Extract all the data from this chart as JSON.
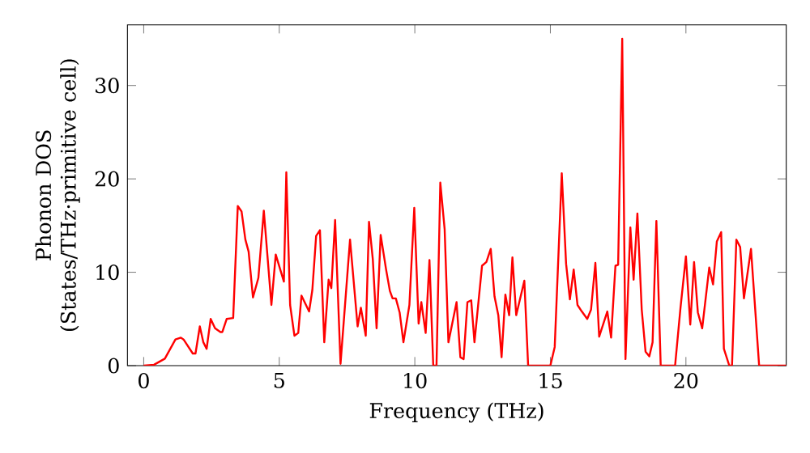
{
  "chart_data": {
    "type": "line",
    "xlabel": "Frequency (THz)",
    "ylabel": "Phonon DOS (States/THz·primitive cell)",
    "xlim": [
      -0.6,
      23.7
    ],
    "ylim": [
      0,
      36.5
    ],
    "xticks": [
      0,
      5,
      10,
      15,
      20
    ],
    "yticks": [
      0,
      10,
      20,
      30
    ],
    "grid": false,
    "series": [
      {
        "color": "#ff0000",
        "x": [
          0,
          0.38,
          0.78,
          1.17,
          1.37,
          1.47,
          1.81,
          1.91,
          2.07,
          2.2,
          2.32,
          2.47,
          2.63,
          2.83,
          2.9,
          3.06,
          3.3,
          3.47,
          3.61,
          3.75,
          3.87,
          4.03,
          4.23,
          4.43,
          4.71,
          4.87,
          5.17,
          5.26,
          5.4,
          5.56,
          5.7,
          5.82,
          6.1,
          6.22,
          6.36,
          6.5,
          6.66,
          6.82,
          6.92,
          7.06,
          7.26,
          7.61,
          7.89,
          8.01,
          8.19,
          8.31,
          8.45,
          8.59,
          8.74,
          8.94,
          9.08,
          9.18,
          9.3,
          9.44,
          9.58,
          9.8,
          9.98,
          10.14,
          10.24,
          10.4,
          10.54,
          10.68,
          10.8,
          10.94,
          11.1,
          11.24,
          11.54,
          11.68,
          11.8,
          11.94,
          12.08,
          12.2,
          12.48,
          12.64,
          12.8,
          12.94,
          13.08,
          13.2,
          13.34,
          13.48,
          13.6,
          13.74,
          14.04,
          14.18,
          15.0,
          15.16,
          15.42,
          15.58,
          15.72,
          15.86,
          16.0,
          16.16,
          16.36,
          16.5,
          16.66,
          16.8,
          17.1,
          17.24,
          17.4,
          17.5,
          17.65,
          17.77,
          17.95,
          18.07,
          18.21,
          18.37,
          18.51,
          18.65,
          18.77,
          18.91,
          19.07,
          19.6,
          19.8,
          20.0,
          20.16,
          20.3,
          20.44,
          20.6,
          20.86,
          21.0,
          21.14,
          21.3,
          21.4,
          21.6,
          21.7,
          21.86,
          22.0,
          22.14,
          22.4,
          22.7,
          23.7
        ],
        "values": [
          0,
          0.1,
          0.75,
          2.8,
          3.0,
          2.8,
          1.3,
          1.3,
          4.2,
          2.5,
          1.8,
          5.0,
          4.0,
          3.6,
          3.6,
          5.0,
          5.1,
          17.1,
          16.5,
          13.5,
          12.2,
          7.3,
          9.4,
          16.6,
          6.5,
          11.9,
          9.0,
          20.7,
          6.5,
          3.2,
          3.5,
          7.5,
          5.8,
          8.1,
          13.9,
          14.5,
          2.5,
          9.2,
          8.3,
          15.6,
          0.2,
          13.5,
          4.2,
          6.2,
          3.2,
          15.4,
          11.4,
          4.0,
          14.0,
          10.3,
          8.0,
          7.2,
          7.2,
          5.7,
          2.5,
          6.5,
          16.9,
          4.5,
          6.8,
          3.5,
          11.3,
          0,
          0,
          19.6,
          14.6,
          2.5,
          6.8,
          0.9,
          0.7,
          6.8,
          7.0,
          2.5,
          10.7,
          11.1,
          12.5,
          7.4,
          5.4,
          0.9,
          7.6,
          5.4,
          11.6,
          5.4,
          9.1,
          0,
          0,
          2.0,
          20.6,
          10.9,
          7.1,
          10.3,
          6.5,
          5.8,
          5.0,
          6.0,
          11.0,
          3.1,
          5.8,
          3.0,
          10.7,
          10.8,
          35.0,
          0.7,
          14.8,
          9.2,
          16.3,
          6.0,
          1.5,
          1.0,
          2.5,
          15.5,
          0,
          0,
          6.2,
          11.7,
          4.4,
          11.1,
          5.7,
          4.0,
          10.5,
          8.7,
          13.3,
          14.3,
          1.8,
          0,
          0,
          13.5,
          12.7,
          7.2,
          12.5,
          0,
          0
        ]
      }
    ]
  }
}
